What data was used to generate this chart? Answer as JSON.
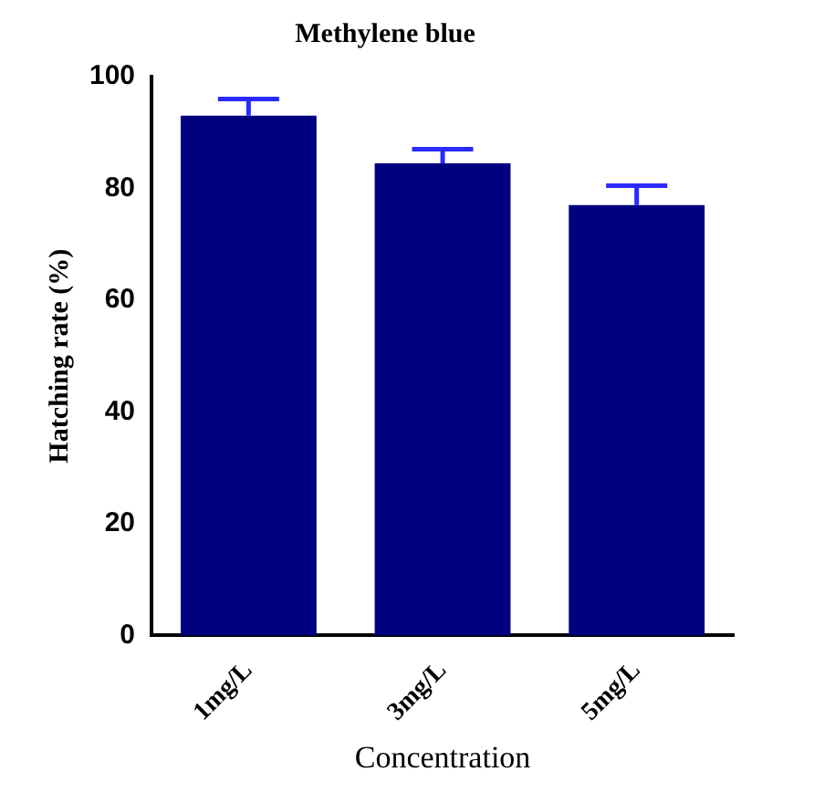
{
  "chart_data": {
    "type": "bar",
    "title": "Methylene blue",
    "xlabel": "Concentration",
    "ylabel": "Hatching rate (%)",
    "categories": [
      "1mg/L",
      "3mg/L",
      "5mg/L"
    ],
    "values": [
      93,
      84.5,
      77
    ],
    "errors": [
      3,
      2.5,
      3.5
    ],
    "color": "#000080",
    "ylim": [
      0,
      100
    ],
    "yticks": [
      0,
      20,
      40,
      60,
      80,
      100
    ],
    "grid": false,
    "legend": false
  }
}
